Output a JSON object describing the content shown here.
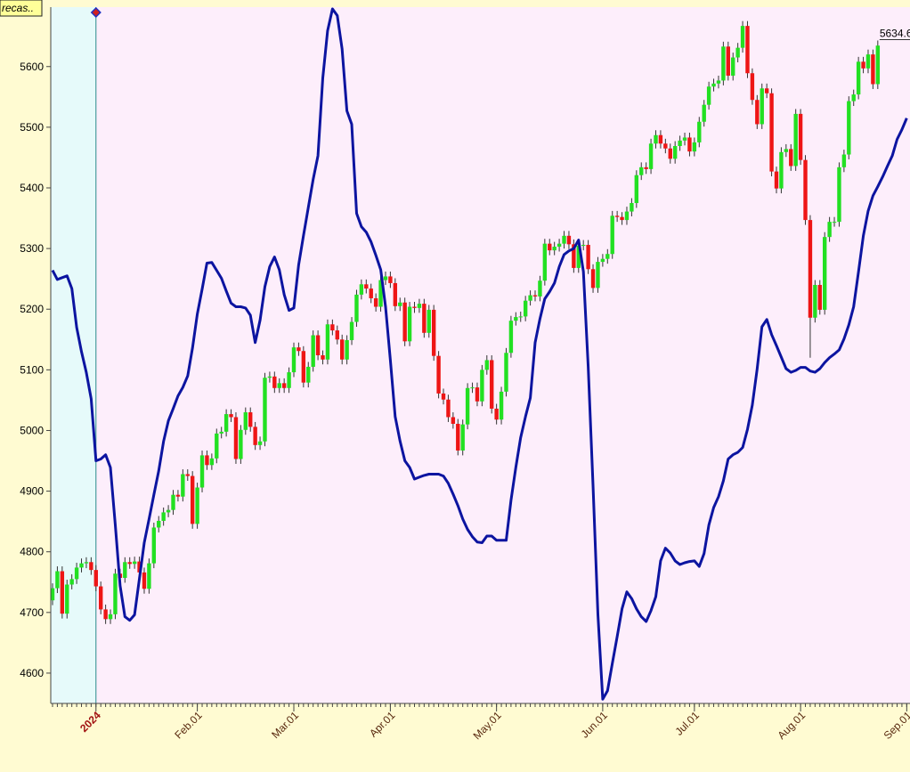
{
  "chart_data": {
    "type": "candlestick",
    "title": "recas..",
    "categories": [
      "2023-12-18",
      "2023-12-19",
      "2023-12-20",
      "2023-12-21",
      "2023-12-22",
      "2023-12-26",
      "2023-12-27",
      "2023-12-28",
      "2023-12-29",
      "2024-01-02",
      "2024-01-03",
      "2024-01-04",
      "2024-01-05",
      "2024-01-08",
      "2024-01-09",
      "2024-01-10",
      "2024-01-11",
      "2024-01-12",
      "2024-01-16",
      "2024-01-17",
      "2024-01-18",
      "2024-01-19",
      "2024-01-22",
      "2024-01-23",
      "2024-01-24",
      "2024-01-25",
      "2024-01-26",
      "2024-01-29",
      "2024-01-30",
      "2024-01-31",
      "2024-02-01",
      "2024-02-02",
      "2024-02-05",
      "2024-02-06",
      "2024-02-07",
      "2024-02-08",
      "2024-02-09",
      "2024-02-12",
      "2024-02-13",
      "2024-02-14",
      "2024-02-15",
      "2024-02-16",
      "2024-02-20",
      "2024-02-21",
      "2024-02-22",
      "2024-02-23",
      "2024-02-26",
      "2024-02-27",
      "2024-02-28",
      "2024-02-29",
      "2024-03-01",
      "2024-03-04",
      "2024-03-05",
      "2024-03-06",
      "2024-03-07",
      "2024-03-08",
      "2024-03-11",
      "2024-03-12",
      "2024-03-13",
      "2024-03-14",
      "2024-03-15",
      "2024-03-18",
      "2024-03-19",
      "2024-03-20",
      "2024-03-21",
      "2024-03-22",
      "2024-03-25",
      "2024-03-26",
      "2024-03-27",
      "2024-03-28",
      "2024-04-01",
      "2024-04-02",
      "2024-04-03",
      "2024-04-04",
      "2024-04-05",
      "2024-04-08",
      "2024-04-09",
      "2024-04-10",
      "2024-04-11",
      "2024-04-12",
      "2024-04-15",
      "2024-04-16",
      "2024-04-17",
      "2024-04-18",
      "2024-04-19",
      "2024-04-22",
      "2024-04-23",
      "2024-04-24",
      "2024-04-25",
      "2024-04-26",
      "2024-04-29",
      "2024-04-30",
      "2024-05-01",
      "2024-05-02",
      "2024-05-03",
      "2024-05-06",
      "2024-05-07",
      "2024-05-08",
      "2024-05-09",
      "2024-05-10",
      "2024-05-13",
      "2024-05-14",
      "2024-05-15",
      "2024-05-16",
      "2024-05-17",
      "2024-05-20",
      "2024-05-21",
      "2024-05-22",
      "2024-05-23",
      "2024-05-24",
      "2024-05-28",
      "2024-05-29",
      "2024-05-30",
      "2024-05-31",
      "2024-06-03",
      "2024-06-04",
      "2024-06-05",
      "2024-06-06",
      "2024-06-07",
      "2024-06-10",
      "2024-06-11",
      "2024-06-12",
      "2024-06-13",
      "2024-06-14",
      "2024-06-17",
      "2024-06-18",
      "2024-06-20",
      "2024-06-21",
      "2024-06-24",
      "2024-06-25",
      "2024-06-26",
      "2024-06-27",
      "2024-06-28",
      "2024-07-01",
      "2024-07-02",
      "2024-07-03",
      "2024-07-05",
      "2024-07-08",
      "2024-07-09",
      "2024-07-10",
      "2024-07-11",
      "2024-07-12",
      "2024-07-15",
      "2024-07-16",
      "2024-07-17",
      "2024-07-18",
      "2024-07-19",
      "2024-07-22",
      "2024-07-23",
      "2024-07-24",
      "2024-07-25",
      "2024-07-26",
      "2024-07-29",
      "2024-07-30",
      "2024-07-31",
      "2024-08-01",
      "2024-08-02",
      "2024-08-05",
      "2024-08-06",
      "2024-08-07",
      "2024-08-08",
      "2024-08-09",
      "2024-08-12",
      "2024-08-13",
      "2024-08-14",
      "2024-08-15",
      "2024-08-16",
      "2024-08-19",
      "2024-08-20",
      "2024-08-21",
      "2024-08-22",
      "2024-08-23",
      "2024-08-26",
      "2024-08-27",
      "2024-08-28",
      "2024-08-29",
      "2024-08-30",
      "2024-09-03"
    ],
    "open": [
      4720,
      4740,
      4768,
      4698,
      4746,
      4755,
      4774,
      4781,
      4783,
      4770,
      4743,
      4705,
      4689,
      4697,
      4764,
      4757,
      4783,
      4780,
      4784,
      4766,
      4739,
      4781,
      4840,
      4851,
      4865,
      4869,
      4894,
      4891,
      4928,
      4925,
      4846,
      4906,
      4959,
      4943,
      4954,
      4995,
      4998,
      5027,
      5022,
      4953,
      5001,
      5030,
      5006,
      4976,
      4982,
      5087,
      5089,
      5070,
      5078,
      5070,
      5096,
      5137,
      5131,
      5079,
      5105,
      5157,
      5124,
      5117,
      5175,
      5165,
      5150,
      5117,
      5149,
      5179,
      5224,
      5241,
      5234,
      5218,
      5204,
      5248,
      5254,
      5243,
      5205,
      5211,
      5147,
      5204,
      5202,
      5209,
      5161,
      5199,
      5123,
      5061,
      5051,
      5022,
      5011,
      4967,
      5010,
      5070,
      5071,
      5048,
      5100,
      5116,
      5036,
      5018,
      5064,
      5128,
      5181,
      5187,
      5188,
      5214,
      5223,
      5221,
      5247,
      5308,
      5297,
      5303,
      5308,
      5321,
      5307,
      5268,
      5305,
      5306,
      5266,
      5235,
      5278,
      5283,
      5291,
      5354,
      5352,
      5347,
      5361,
      5375,
      5421,
      5434,
      5431,
      5473,
      5487,
      5473,
      5465,
      5448,
      5469,
      5478,
      5483,
      5460,
      5475,
      5509,
      5537,
      5567,
      5572,
      5577,
      5633,
      5585,
      5615,
      5631,
      5667,
      5589,
      5545,
      5505,
      5564,
      5556,
      5427,
      5399,
      5459,
      5464,
      5436,
      5522,
      5446,
      5347,
      5186,
      5240,
      5199,
      5319,
      5344,
      5344,
      5434,
      5455,
      5543,
      5554,
      5608,
      5597,
      5620,
      5571,
      null,
      null,
      null,
      null,
      null,
      null
    ],
    "high": [
      4748,
      4776,
      4776,
      4754,
      4763,
      4782,
      4789,
      4791,
      4791,
      4778,
      4751,
      4713,
      4705,
      4772,
      4772,
      4791,
      4791,
      4792,
      4792,
      4774,
      4789,
      4848,
      4859,
      4873,
      4877,
      4902,
      4902,
      4936,
      4936,
      4933,
      4914,
      4967,
      4967,
      4962,
      5003,
      5006,
      5035,
      5035,
      5030,
      5009,
      5038,
      5038,
      5014,
      4990,
      5095,
      5097,
      5097,
      5086,
      5086,
      5104,
      5145,
      5145,
      5139,
      5113,
      5165,
      5165,
      5132,
      5183,
      5183,
      5173,
      5158,
      5157,
      5187,
      5232,
      5249,
      5249,
      5242,
      5226,
      5256,
      5262,
      5262,
      5251,
      5219,
      5219,
      5212,
      5212,
      5217,
      5217,
      5207,
      5207,
      5131,
      5069,
      5059,
      5030,
      5019,
      5018,
      5078,
      5079,
      5079,
      5108,
      5124,
      5124,
      5044,
      5072,
      5136,
      5189,
      5195,
      5196,
      5222,
      5231,
      5231,
      5255,
      5316,
      5316,
      5311,
      5316,
      5329,
      5329,
      5315,
      5313,
      5314,
      5314,
      5274,
      5286,
      5291,
      5299,
      5362,
      5362,
      5360,
      5369,
      5383,
      5429,
      5442,
      5442,
      5481,
      5495,
      5495,
      5481,
      5473,
      5477,
      5486,
      5491,
      5491,
      5483,
      5517,
      5545,
      5575,
      5580,
      5585,
      5641,
      5641,
      5623,
      5639,
      5675,
      5675,
      5597,
      5553,
      5572,
      5572,
      5564,
      5435,
      5467,
      5472,
      5472,
      5530,
      5530,
      5454,
      5355,
      5248,
      5248,
      5327,
      5352,
      5352,
      5442,
      5463,
      5551,
      5562,
      5616,
      5616,
      5628,
      5628,
      5643,
      null,
      null,
      null,
      null,
      null,
      null
    ],
    "low": [
      4712,
      4732,
      4690,
      4690,
      4738,
      4747,
      4766,
      4773,
      4762,
      4735,
      4697,
      4681,
      4681,
      4689,
      4749,
      4749,
      4772,
      4772,
      4758,
      4731,
      4731,
      4773,
      4832,
      4843,
      4857,
      4861,
      4883,
      4883,
      4917,
      4838,
      4838,
      4898,
      4935,
      4935,
      4946,
      4987,
      4990,
      5014,
      4945,
      4945,
      4993,
      4998,
      4968,
      4968,
      4974,
      5079,
      5062,
      5062,
      5062,
      5062,
      5088,
      5123,
      5071,
      5071,
      5097,
      5116,
      5109,
      5109,
      5157,
      5142,
      5109,
      5109,
      5141,
      5171,
      5216,
      5226,
      5210,
      5196,
      5196,
      5240,
      5235,
      5197,
      5197,
      5139,
      5139,
      5194,
      5194,
      5153,
      5153,
      5115,
      5053,
      5043,
      5014,
      5003,
      4959,
      4959,
      5002,
      5062,
      5040,
      5040,
      5092,
      5028,
      5010,
      5010,
      5056,
      5120,
      5173,
      5179,
      5180,
      5206,
      5213,
      5213,
      5239,
      5289,
      5289,
      5295,
      5300,
      5299,
      5260,
      5260,
      5297,
      5258,
      5227,
      5227,
      5270,
      5275,
      5283,
      5344,
      5339,
      5339,
      5353,
      5367,
      5413,
      5423,
      5423,
      5465,
      5465,
      5457,
      5440,
      5440,
      5461,
      5470,
      5452,
      5452,
      5467,
      5501,
      5529,
      5559,
      5564,
      5569,
      5577,
      5577,
      5607,
      5623,
      5581,
      5537,
      5497,
      5497,
      5548,
      5419,
      5391,
      5391,
      5451,
      5428,
      5428,
      5438,
      5339,
      5120,
      5178,
      5191,
      5191,
      5311,
      5336,
      5336,
      5426,
      5447,
      5535,
      5546,
      5589,
      5589,
      5563,
      5563,
      null,
      null,
      null,
      null,
      null,
      null
    ],
    "close": [
      4740,
      4768,
      4698,
      4746,
      4755,
      4774,
      4781,
      4783,
      4770,
      4743,
      4705,
      4689,
      4697,
      4764,
      4757,
      4783,
      4780,
      4784,
      4766,
      4739,
      4781,
      4840,
      4851,
      4865,
      4869,
      4894,
      4891,
      4928,
      4925,
      4846,
      4906,
      4959,
      4943,
      4954,
      4995,
      4998,
      5027,
      5022,
      4953,
      5001,
      5030,
      5006,
      4976,
      4982,
      5087,
      5089,
      5070,
      5078,
      5070,
      5096,
      5137,
      5131,
      5079,
      5105,
      5157,
      5124,
      5117,
      5175,
      5165,
      5150,
      5117,
      5149,
      5179,
      5224,
      5241,
      5234,
      5218,
      5204,
      5248,
      5254,
      5243,
      5205,
      5211,
      5147,
      5204,
      5202,
      5209,
      5161,
      5199,
      5123,
      5061,
      5051,
      5022,
      5011,
      4967,
      5010,
      5070,
      5071,
      5048,
      5100,
      5116,
      5036,
      5018,
      5064,
      5128,
      5181,
      5187,
      5188,
      5214,
      5223,
      5221,
      5247,
      5308,
      5297,
      5303,
      5308,
      5321,
      5307,
      5268,
      5305,
      5306,
      5266,
      5235,
      5278,
      5283,
      5291,
      5354,
      5352,
      5347,
      5361,
      5375,
      5421,
      5434,
      5431,
      5473,
      5487,
      5473,
      5465,
      5448,
      5469,
      5478,
      5483,
      5460,
      5475,
      5509,
      5537,
      5567,
      5572,
      5577,
      5633,
      5585,
      5615,
      5631,
      5667,
      5589,
      5545,
      5505,
      5564,
      5556,
      5427,
      5399,
      5459,
      5464,
      5436,
      5522,
      5446,
      5347,
      5186,
      5240,
      5199,
      5319,
      5344,
      5344,
      5434,
      5455,
      5543,
      5554,
      5608,
      5597,
      5620,
      5571,
      5634.6,
      null,
      null,
      null,
      null,
      null,
      null
    ],
    "up_color": "#22e022",
    "down_color": "#ee1515",
    "line": {
      "color": "#0c14a0",
      "values": [
        5264,
        5249,
        5252,
        5255,
        5234,
        5170,
        5130,
        5096,
        5052,
        4950,
        4953,
        4960,
        4939,
        4844,
        4744,
        4693,
        4687,
        4696,
        4756,
        4815,
        4854,
        4894,
        4933,
        4982,
        5016,
        5036,
        5057,
        5071,
        5090,
        5136,
        5192,
        5233,
        5276,
        5277,
        5264,
        5251,
        5230,
        5210,
        5204,
        5204,
        5202,
        5190,
        5145,
        5182,
        5237,
        5270,
        5286,
        5265,
        5224,
        5198,
        5202,
        5273,
        5321,
        5368,
        5414,
        5453,
        5581,
        5659,
        5695,
        5684,
        5629,
        5527,
        5505,
        5358,
        5336,
        5327,
        5311,
        5289,
        5265,
        5204,
        5116,
        5023,
        4983,
        4950,
        4939,
        4920,
        4923,
        4926,
        4928,
        4928,
        4928,
        4925,
        4913,
        4895,
        4876,
        4854,
        4837,
        4825,
        4816,
        4815,
        4826,
        4826,
        4819,
        4819,
        4819,
        4885,
        4939,
        4988,
        5023,
        5054,
        5145,
        5184,
        5217,
        5229,
        5243,
        5270,
        5290,
        5296,
        5300,
        5314,
        5262,
        5105,
        4910,
        4697,
        4557,
        4571,
        4616,
        4660,
        4706,
        4734,
        4723,
        4706,
        4693,
        4685,
        4703,
        4726,
        4785,
        4806,
        4798,
        4785,
        4779,
        4782,
        4784,
        4785,
        4776,
        4797,
        4844,
        4873,
        4891,
        4917,
        4953,
        4960,
        4964,
        4972,
        5002,
        5042,
        5101,
        5171,
        5183,
        5158,
        5140,
        5121,
        5102,
        5096,
        5099,
        5104,
        5104,
        5098,
        5096,
        5102,
        5112,
        5120,
        5126,
        5133,
        5151,
        5174,
        5204,
        5261,
        5321,
        5362,
        5387,
        5402,
        5418,
        5436,
        5453,
        5480,
        5496,
        5515
      ]
    },
    "ylim": [
      4550,
      5698
    ],
    "yticks": [
      4600,
      4700,
      4800,
      4900,
      5000,
      5100,
      5200,
      5300,
      5400,
      5500,
      5600
    ],
    "xticks": [
      {
        "value": "2024-01-02",
        "label": "2024"
      },
      {
        "value": "2024-02-01",
        "label": "Feb.01"
      },
      {
        "value": "2024-03-01",
        "label": "Mar.01"
      },
      {
        "value": "2024-04-01",
        "label": "Apr.01"
      },
      {
        "value": "2024-05-01",
        "label": "May.01"
      },
      {
        "value": "2024-06-03",
        "label": "Jun.01"
      },
      {
        "value": "2024-07-01",
        "label": "Jul.01"
      },
      {
        "value": "2024-08-01",
        "label": "Aug.01"
      },
      {
        "value": "2024-09-03",
        "label": "Sep.01"
      }
    ]
  }
}
